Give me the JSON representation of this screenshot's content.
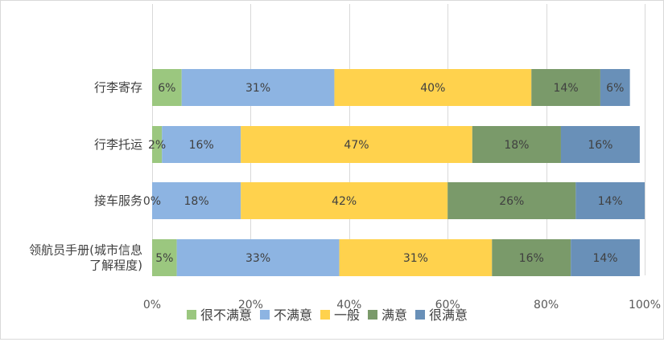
{
  "chart_data": {
    "type": "bar",
    "orientation": "horizontal",
    "stacked": "percent",
    "categories": [
      "行李寄存",
      "行李托运",
      "接车服务",
      [
        "领航员手册(城市信息",
        "了解程度)"
      ]
    ],
    "series": [
      {
        "name": "很不满意",
        "color": "#9bc77f",
        "values": [
          6,
          2,
          0,
          5
        ],
        "labels": [
          "6%",
          "2%",
          "0%",
          "5%"
        ]
      },
      {
        "name": "不满意",
        "color": "#8db4e2",
        "values": [
          31,
          16,
          18,
          33
        ],
        "labels": [
          "31%",
          "16%",
          "18%",
          "33%"
        ]
      },
      {
        "name": "一般",
        "color": "#ffd24d",
        "values": [
          40,
          47,
          42,
          31
        ],
        "labels": [
          "40%",
          "47%",
          "42%",
          "31%"
        ]
      },
      {
        "name": "满意",
        "color": "#7a9a6a",
        "values": [
          14,
          18,
          26,
          16
        ],
        "labels": [
          "14%",
          "18%",
          "26%",
          "16%"
        ]
      },
      {
        "name": "很满意",
        "color": "#6990b8",
        "values": [
          6,
          16,
          14,
          14
        ],
        "labels": [
          "6%",
          "16%",
          "14%",
          "14%"
        ]
      }
    ],
    "xlim": [
      0,
      100
    ],
    "xticks": [
      "0%",
      "20%",
      "40%",
      "60%",
      "80%",
      "100%"
    ],
    "grid": true,
    "legend_position": "bottom"
  }
}
